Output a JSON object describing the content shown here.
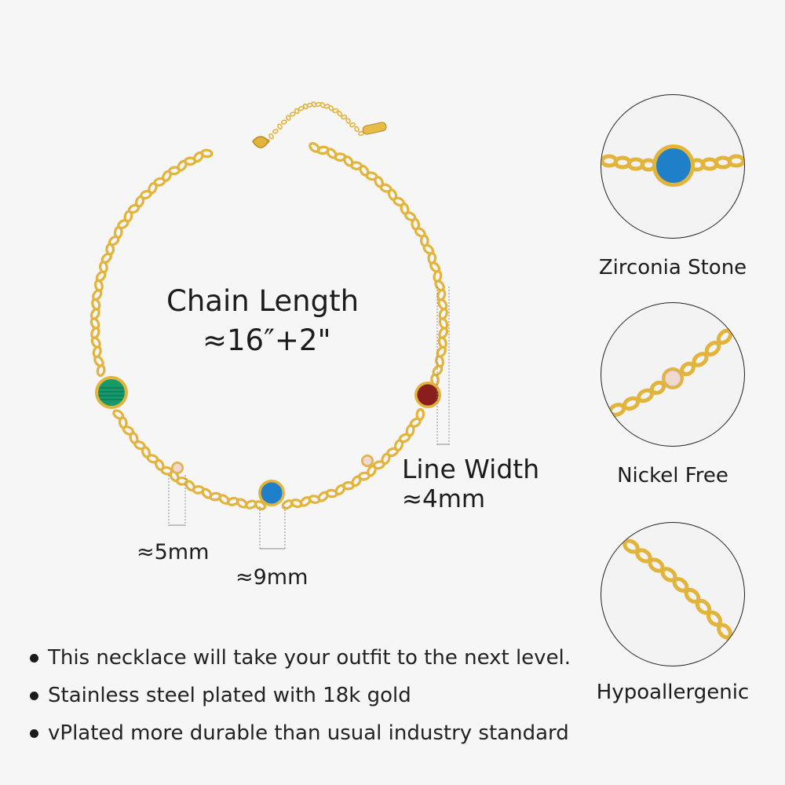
{
  "chain_length": {
    "title": "Chain Length",
    "value": "≈16″+2\""
  },
  "line_width": {
    "title": "Line Width",
    "value": "≈4mm"
  },
  "small_stone_size": "≈5mm",
  "large_stone_size": "≈9mm",
  "features": [
    {
      "label": "Zirconia Stone",
      "icon": "blue-stone-closeup"
    },
    {
      "label": "Nickel Free",
      "icon": "crystal-closeup"
    },
    {
      "label": "Hypoallergenic",
      "icon": "chain-closeup"
    }
  ],
  "bullets": [
    "This necklace will take your outfit to the next level.",
    "Stainless steel plated with 18k gold",
    "vPlated more durable than usual industry standard"
  ],
  "colors": {
    "gold": "#e3b43c",
    "green_stone": "#169a6c",
    "blue_stone": "#1f7fc9",
    "red_stone": "#8a1e1c",
    "crystal": "#f1d9cf",
    "text": "#1c1c1c"
  }
}
